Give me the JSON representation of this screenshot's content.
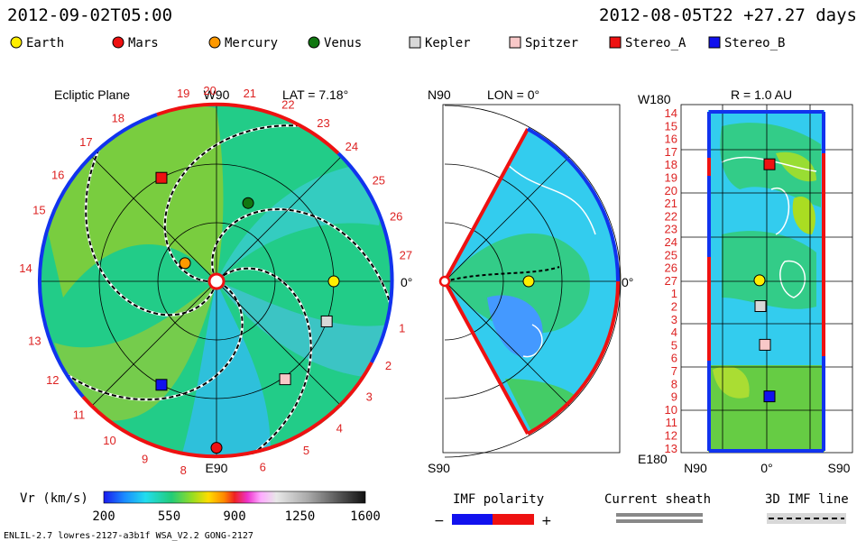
{
  "header": {
    "left_timestamp": "2012-09-02T05:00",
    "right_timestamp": "2012-08-05T22 +27.27 days"
  },
  "legend": [
    {
      "label": "Earth",
      "shape": "circle",
      "color": "#ffee00"
    },
    {
      "label": "Mars",
      "shape": "circle",
      "color": "#ee1111"
    },
    {
      "label": "Mercury",
      "shape": "circle",
      "color": "#ff9900"
    },
    {
      "label": "Venus",
      "shape": "circle",
      "color": "#117711"
    },
    {
      "label": "Kepler",
      "shape": "square",
      "color": "#d8d8d8"
    },
    {
      "label": "Spitzer",
      "shape": "square",
      "color": "#f8c8c8"
    },
    {
      "label": "Stereo_A",
      "shape": "square",
      "color": "#ee1111"
    },
    {
      "label": "Stereo_B",
      "shape": "square",
      "color": "#1111ee"
    }
  ],
  "colors": {
    "text_red": "#dd2222",
    "boundary_red": "#ee1111",
    "boundary_blue": "#1133ee",
    "solar_wind_green": "#22cc77",
    "solar_wind_slow": "#22bbee"
  },
  "chart_data": [
    {
      "type": "heatmap",
      "panel": "ecliptic",
      "title": "Ecliptic Plane",
      "latitude_label": "LAT = 7.18°",
      "top_label": "W90",
      "bottom_label": "E90",
      "right_label": "0°",
      "carrington_day_labels": [
        {
          "label": "19",
          "angle_deg": 100
        },
        {
          "label": "20",
          "angle_deg": 92
        },
        {
          "label": "21",
          "angle_deg": 80
        },
        {
          "label": "22",
          "angle_deg": 68
        },
        {
          "label": "23",
          "angle_deg": 56
        },
        {
          "label": "24",
          "angle_deg": 45
        },
        {
          "label": "25",
          "angle_deg": 32
        },
        {
          "label": "26",
          "angle_deg": 20
        },
        {
          "label": "27",
          "angle_deg": 8
        },
        {
          "label": "1",
          "angle_deg": -14
        },
        {
          "label": "2",
          "angle_deg": -26
        },
        {
          "label": "3",
          "angle_deg": -37
        },
        {
          "label": "4",
          "angle_deg": -50
        },
        {
          "label": "5",
          "angle_deg": -62
        },
        {
          "label": "6",
          "angle_deg": -76
        },
        {
          "label": "8",
          "angle_deg": -100
        },
        {
          "label": "9",
          "angle_deg": -112
        },
        {
          "label": "10",
          "angle_deg": -124
        },
        {
          "label": "11",
          "angle_deg": -136
        },
        {
          "label": "12",
          "angle_deg": -149
        },
        {
          "label": "13",
          "angle_deg": -162
        },
        {
          "label": "14",
          "angle_deg": 176
        },
        {
          "label": "15",
          "angle_deg": 158
        },
        {
          "label": "16",
          "angle_deg": 146
        },
        {
          "label": "17",
          "angle_deg": 133
        },
        {
          "label": "18",
          "angle_deg": 121
        }
      ],
      "bodies": [
        {
          "name": "Earth",
          "r_au": 1.0,
          "angle_deg": 0
        },
        {
          "name": "Mercury",
          "r_au": 0.31,
          "angle_deg": 150
        },
        {
          "name": "Venus",
          "r_au": 0.72,
          "angle_deg": 68
        },
        {
          "name": "Mars",
          "r_au": 1.42,
          "angle_deg": -90
        },
        {
          "name": "Kepler",
          "r_au": 1.0,
          "angle_deg": -20
        },
        {
          "name": "Spitzer",
          "r_au": 1.02,
          "angle_deg": -55
        },
        {
          "name": "Stereo_A",
          "r_au": 1.0,
          "angle_deg": 118
        },
        {
          "name": "Stereo_B",
          "r_au": 1.0,
          "angle_deg": -118
        }
      ],
      "grid_rings_au": [
        0.5,
        1.0,
        1.5
      ]
    },
    {
      "type": "heatmap",
      "panel": "meridional",
      "latitude_top_label": "N90",
      "latitude_bottom_label": "S90",
      "longitude_label": "LON = 0°",
      "right_label": "0°",
      "bodies": [
        {
          "name": "Earth",
          "r_au": 1.0,
          "lat_deg": 0
        }
      ]
    },
    {
      "type": "heatmap",
      "panel": "radial_sphere",
      "radius_label": "R = 1.0 AU",
      "top_label": "W180",
      "bottom_label": "E180",
      "x_tick_labels": [
        "N90",
        "0°",
        "S90"
      ],
      "y_tick_labels": [
        "14",
        "15",
        "16",
        "17",
        "18",
        "19",
        "20",
        "21",
        "22",
        "23",
        "24",
        "25",
        "26",
        "27",
        "1",
        "2",
        "3",
        "4",
        "5",
        "6",
        "7",
        "8",
        "9",
        "10",
        "11",
        "12",
        "13"
      ],
      "bodies": [
        {
          "name": "Stereo_A",
          "row": "18"
        },
        {
          "name": "Earth",
          "row": "27"
        },
        {
          "name": "Kepler",
          "row": "2"
        },
        {
          "name": "Spitzer",
          "row": "5"
        },
        {
          "name": "Stereo_B",
          "row": "9"
        }
      ]
    }
  ],
  "colorbar": {
    "label": "Vr (km/s)",
    "min": 200,
    "max": 1600,
    "tick_labels": [
      "200",
      "550",
      "900",
      "1250",
      "1600"
    ]
  },
  "imf_polarity": {
    "title": "IMF polarity",
    "minus": "−",
    "plus": "+"
  },
  "current_sheath": {
    "title": "Current sheath"
  },
  "imf_line": {
    "title": "3D IMF line"
  },
  "footer": {
    "model_info": "ENLIL-2.7 lowres-2127-a3b1f WSA_V2.2 GONG-2127"
  }
}
